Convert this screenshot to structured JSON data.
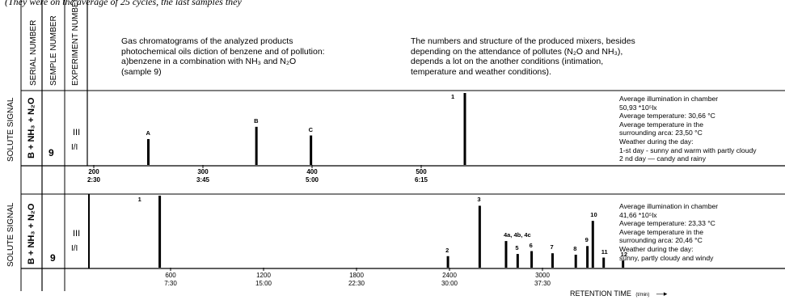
{
  "caption": "(They were on the average of 25 cycles, the last samples they",
  "header": {
    "serial": "SERIAL NUMBER",
    "sample": "SEMPLE NUMBER",
    "experiment": "EXPERIMENT NUMBER"
  },
  "desc_left": [
    "Gas chromatograms of the analyzed products",
    "photochemical oils diction of benzene and of pollution:",
    "a)benzene in a combination with NH₃ and N₂O",
    "(sample 9)"
  ],
  "desc_right": [
    "The numbers and structure of the produced mixers, besides",
    "depending on the attendance of pollutes (N₂O and  NH₃),",
    "depends a lot on the another conditions (intimation,",
    "temperature and weather conditions)."
  ],
  "chart_data": [
    {
      "type": "bar",
      "ylabel": "SOLUTE SIGNAL",
      "sample_label": "B + NH₃ + N₂O",
      "sample_number": "9",
      "experiment_number": "III",
      "experiment_sub": "I/I",
      "x_ticks": [
        {
          "x": 200,
          "top": "200",
          "bottom": "2:30"
        },
        {
          "x": 300,
          "top": "300",
          "bottom": "3:45"
        },
        {
          "x": 400,
          "top": "400",
          "bottom": "5:00"
        },
        {
          "x": 500,
          "top": "500",
          "bottom": "6:15"
        }
      ],
      "xlim": [
        160,
        660
      ],
      "peaks": [
        {
          "x": 250,
          "height": 0.36,
          "label": "A"
        },
        {
          "x": 349,
          "height": 0.53,
          "label": "B"
        },
        {
          "x": 399,
          "height": 0.41,
          "label": "C"
        },
        {
          "x": 540,
          "height": 1.0,
          "label": "1",
          "label_offset": -14
        }
      ],
      "info": [
        "Average illumination in chamber",
        "50,93 *10⁵lx",
        "Average temperature: 30,66 °C",
        "Average temperature in the",
        "surrounding arca: 23,50 °C",
        "Weather during the day:",
        "1-st day - sunny and warm with partly cloudy",
        "2 nd day — candy and rainy"
      ]
    },
    {
      "type": "bar",
      "ylabel": "SOLUTE SIGNAL",
      "sample_label": "B + NH₃ + N₂O",
      "sample_number": "9",
      "experiment_number": "III",
      "experiment_sub": "I/I",
      "x_ticks": [
        {
          "x": 600,
          "top": "600",
          "bottom": "7:30"
        },
        {
          "x": 1200,
          "top": "1200",
          "bottom": "15:00"
        },
        {
          "x": 1800,
          "top": "1800",
          "bottom": "22:30"
        },
        {
          "x": 2400,
          "top": "2400",
          "bottom": "30:00"
        },
        {
          "x": 3000,
          "top": "3000",
          "bottom": "37:30"
        }
      ],
      "xlim": [
        0,
        3600
      ],
      "peaks": [
        {
          "x": 530,
          "height": 1.0,
          "label": "1",
          "label_offset": -24
        },
        {
          "x": 2390,
          "height": 0.16,
          "label": "2"
        },
        {
          "x": 2595,
          "height": 0.86,
          "label": "3"
        },
        {
          "x": 2765,
          "height": 0.37,
          "label": "4a, 4b, 4c"
        },
        {
          "x": 2840,
          "height": 0.19,
          "label": "5"
        },
        {
          "x": 2930,
          "height": 0.23,
          "label": "6"
        },
        {
          "x": 3065,
          "height": 0.2,
          "label": "7"
        },
        {
          "x": 3215,
          "height": 0.18,
          "label": "8"
        },
        {
          "x": 3290,
          "height": 0.3,
          "label": "9"
        },
        {
          "x": 3325,
          "height": 0.65,
          "label": "10"
        },
        {
          "x": 3395,
          "height": 0.14,
          "label": "11"
        },
        {
          "x": 3520,
          "height": 0.1,
          "label": "12"
        }
      ],
      "info": [
        "Average illumination in chamber",
        "41,66 *10⁵lx",
        "Average temperature: 23,33 °C",
        "Average temperature in the",
        "surrounding arca: 20,46 °C",
        "Weather during the day:",
        "sunny, partly cloudy and windy"
      ]
    }
  ],
  "xlabel": "RETENTION TIME",
  "xunit": "(t/min)"
}
